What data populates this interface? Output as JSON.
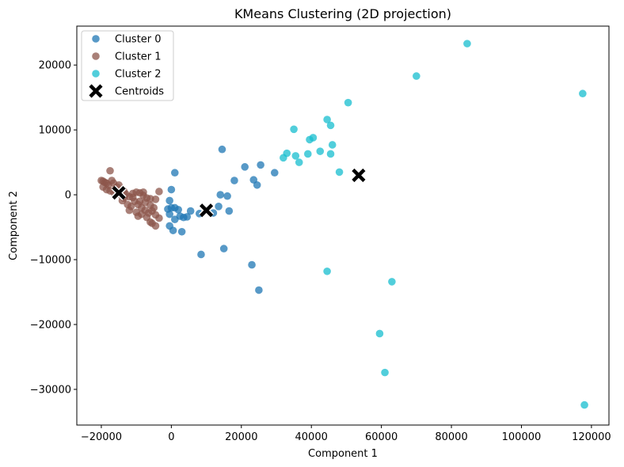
{
  "chart_data": {
    "type": "scatter",
    "title": "KMeans Clustering (2D projection)",
    "xlabel": "Component 1",
    "ylabel": "Component 2",
    "xlim": [
      -27000,
      125000
    ],
    "ylim": [
      -35500,
      26000
    ],
    "xticks": [
      -20000,
      0,
      20000,
      40000,
      60000,
      80000,
      100000,
      120000
    ],
    "xtick_labels": [
      "−20000",
      "0",
      "20000",
      "40000",
      "60000",
      "80000",
      "100000",
      "120000"
    ],
    "yticks": [
      -30000,
      -20000,
      -10000,
      0,
      10000,
      20000
    ],
    "ytick_labels": [
      "−30000",
      "−20000",
      "−10000",
      "0",
      "10000",
      "20000"
    ],
    "grid": false,
    "legend_position": "top-left",
    "series": [
      {
        "name": "Cluster 0",
        "color": "#1f77b4",
        "points": [
          [
            14500,
            7000
          ],
          [
            1000,
            3400
          ],
          [
            25500,
            4600
          ],
          [
            21000,
            4300
          ],
          [
            29500,
            3400
          ],
          [
            18000,
            2200
          ],
          [
            23500,
            2300
          ],
          [
            24500,
            1500
          ],
          [
            14000,
            0
          ],
          [
            16000,
            -200
          ],
          [
            0,
            800
          ],
          [
            -500,
            -900
          ],
          [
            -1000,
            -2200
          ],
          [
            0,
            -2000
          ],
          [
            1000,
            -2000
          ],
          [
            2000,
            -2300
          ],
          [
            -500,
            -3000
          ],
          [
            2500,
            -3300
          ],
          [
            3500,
            -3500
          ],
          [
            4500,
            -3400
          ],
          [
            5500,
            -2500
          ],
          [
            8000,
            -2900
          ],
          [
            12000,
            -2800
          ],
          [
            13500,
            -1800
          ],
          [
            16500,
            -2500
          ],
          [
            1000,
            -3800
          ],
          [
            -500,
            -4800
          ],
          [
            500,
            -5500
          ],
          [
            3000,
            -5700
          ],
          [
            8500,
            -9200
          ],
          [
            15000,
            -8300
          ],
          [
            23000,
            -10800
          ],
          [
            25000,
            -14700
          ]
        ]
      },
      {
        "name": "Cluster 1",
        "color": "#8c564b",
        "points": [
          [
            -17500,
            3700
          ],
          [
            -20000,
            2200
          ],
          [
            -19500,
            2100
          ],
          [
            -19000,
            1900
          ],
          [
            -18500,
            1800
          ],
          [
            -18000,
            1500
          ],
          [
            -17000,
            2200
          ],
          [
            -16500,
            1800
          ],
          [
            -15500,
            1200
          ],
          [
            -19500,
            1200
          ],
          [
            -18500,
            800
          ],
          [
            -17500,
            600
          ],
          [
            -16500,
            400
          ],
          [
            -15500,
            300
          ],
          [
            -14500,
            0
          ],
          [
            -13500,
            500
          ],
          [
            -13000,
            100
          ],
          [
            -12000,
            -300
          ],
          [
            -11000,
            -400
          ],
          [
            -10000,
            400
          ],
          [
            -9000,
            300
          ],
          [
            -8000,
            -100
          ],
          [
            -7000,
            -500
          ],
          [
            -6000,
            -600
          ],
          [
            -4500,
            -700
          ],
          [
            -3500,
            500
          ],
          [
            -10500,
            -1000
          ],
          [
            -9500,
            -1500
          ],
          [
            -8500,
            -2000
          ],
          [
            -7500,
            -2400
          ],
          [
            -6500,
            -2800
          ],
          [
            -5500,
            -2500
          ],
          [
            -4500,
            -3100
          ],
          [
            -3500,
            -3600
          ],
          [
            -12500,
            -1500
          ],
          [
            -12000,
            -2400
          ],
          [
            -10000,
            -2700
          ],
          [
            -9500,
            -3300
          ],
          [
            -8500,
            -3000
          ],
          [
            -7000,
            -3500
          ],
          [
            -6000,
            -4200
          ],
          [
            -5500,
            -4400
          ],
          [
            -4500,
            -4800
          ],
          [
            -11500,
            -1800
          ],
          [
            -13500,
            -500
          ],
          [
            -14000,
            -900
          ],
          [
            -16000,
            800
          ],
          [
            -15000,
            1500
          ],
          [
            -11000,
            200
          ],
          [
            -8000,
            400
          ],
          [
            -7500,
            -1200
          ],
          [
            -6000,
            -1600
          ],
          [
            -5000,
            -2000
          ],
          [
            -9000,
            -1000
          ]
        ]
      },
      {
        "name": "Cluster 2",
        "color": "#17becf",
        "points": [
          [
            84500,
            23300
          ],
          [
            70000,
            18300
          ],
          [
            117500,
            15600
          ],
          [
            50500,
            14200
          ],
          [
            44500,
            11600
          ],
          [
            35000,
            10100
          ],
          [
            45500,
            10700
          ],
          [
            40500,
            8800
          ],
          [
            39500,
            8500
          ],
          [
            46000,
            7700
          ],
          [
            33000,
            6400
          ],
          [
            42500,
            6700
          ],
          [
            35500,
            6000
          ],
          [
            39000,
            6300
          ],
          [
            45500,
            6300
          ],
          [
            32000,
            5700
          ],
          [
            36500,
            5000
          ],
          [
            48000,
            3500
          ],
          [
            44500,
            -11800
          ],
          [
            63000,
            -13400
          ],
          [
            59500,
            -21400
          ],
          [
            61000,
            -27400
          ],
          [
            118000,
            -32400
          ]
        ]
      },
      {
        "name": "Centroids",
        "color": "#000000",
        "marker": "x",
        "points": [
          [
            -15000,
            300
          ],
          [
            10000,
            -2400
          ],
          [
            53500,
            3000
          ]
        ]
      }
    ]
  }
}
